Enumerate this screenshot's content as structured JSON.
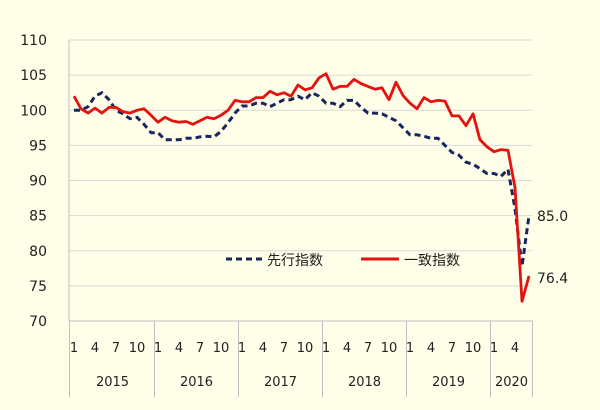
{
  "chart_data": {
    "type": "line",
    "title": "",
    "xlabel": "",
    "ylabel": "",
    "ylim": [
      70,
      110
    ],
    "yticks": [
      70,
      75,
      80,
      85,
      90,
      95,
      100,
      105,
      110
    ],
    "grid": "horizontal",
    "legend_position": "center-right",
    "month_tick_labels": [
      "1",
      "4",
      "7",
      "10"
    ],
    "years": [
      "2015",
      "2016",
      "2017",
      "2018",
      "2019",
      "2020"
    ],
    "x": [
      "2015-01",
      "2015-02",
      "2015-03",
      "2015-04",
      "2015-05",
      "2015-06",
      "2015-07",
      "2015-08",
      "2015-09",
      "2015-10",
      "2015-11",
      "2015-12",
      "2016-01",
      "2016-02",
      "2016-03",
      "2016-04",
      "2016-05",
      "2016-06",
      "2016-07",
      "2016-08",
      "2016-09",
      "2016-10",
      "2016-11",
      "2016-12",
      "2017-01",
      "2017-02",
      "2017-03",
      "2017-04",
      "2017-05",
      "2017-06",
      "2017-07",
      "2017-08",
      "2017-09",
      "2017-10",
      "2017-11",
      "2017-12",
      "2018-01",
      "2018-02",
      "2018-03",
      "2018-04",
      "2018-05",
      "2018-06",
      "2018-07",
      "2018-08",
      "2018-09",
      "2018-10",
      "2018-11",
      "2018-12",
      "2019-01",
      "2019-02",
      "2019-03",
      "2019-04",
      "2019-05",
      "2019-06",
      "2019-07",
      "2019-08",
      "2019-09",
      "2019-10",
      "2019-11",
      "2019-12",
      "2020-01",
      "2020-02",
      "2020-03",
      "2020-04",
      "2020-05",
      "2020-06"
    ],
    "series": [
      {
        "name": "先行指数",
        "color": "#17265c",
        "style": "dashed",
        "values": [
          100.0,
          100.0,
          100.5,
          102.0,
          102.5,
          101.5,
          100.0,
          99.5,
          98.8,
          99.0,
          98.0,
          96.8,
          96.8,
          95.8,
          95.8,
          95.8,
          96.0,
          96.0,
          96.2,
          96.3,
          96.2,
          97.0,
          98.2,
          99.6,
          100.6,
          100.6,
          101.0,
          101.0,
          100.5,
          101.0,
          101.5,
          101.5,
          102.0,
          101.5,
          102.5,
          102.0,
          101.0,
          101.0,
          100.5,
          101.4,
          101.4,
          100.4,
          99.6,
          99.6,
          99.5,
          99.0,
          98.5,
          97.5,
          96.5,
          96.5,
          96.3,
          96.0,
          96.0,
          95.0,
          94.0,
          93.6,
          92.6,
          92.3,
          91.7,
          91.0,
          91.0,
          90.6,
          91.6,
          86.0,
          77.8,
          85.0
        ]
      },
      {
        "name": "一致指数",
        "color": "#e3130f",
        "style": "solid",
        "values": [
          102.0,
          100.2,
          99.6,
          100.3,
          99.6,
          100.4,
          100.4,
          99.8,
          99.6,
          100.0,
          100.2,
          99.3,
          98.3,
          99.0,
          98.5,
          98.3,
          98.4,
          98.0,
          98.5,
          99.0,
          98.8,
          99.3,
          100.0,
          101.4,
          101.2,
          101.2,
          101.8,
          101.8,
          102.7,
          102.2,
          102.5,
          102.0,
          103.6,
          102.9,
          103.2,
          104.6,
          105.2,
          103.0,
          103.4,
          103.4,
          104.4,
          103.8,
          103.4,
          103.0,
          103.2,
          101.5,
          104.0,
          102.1,
          101.0,
          100.2,
          101.8,
          101.2,
          101.4,
          101.3,
          99.2,
          99.2,
          97.8,
          99.5,
          95.8,
          94.8,
          94.1,
          94.4,
          94.3,
          89.0,
          72.8,
          76.4
        ]
      }
    ],
    "annotations": [
      "85.0",
      "76.4"
    ]
  }
}
